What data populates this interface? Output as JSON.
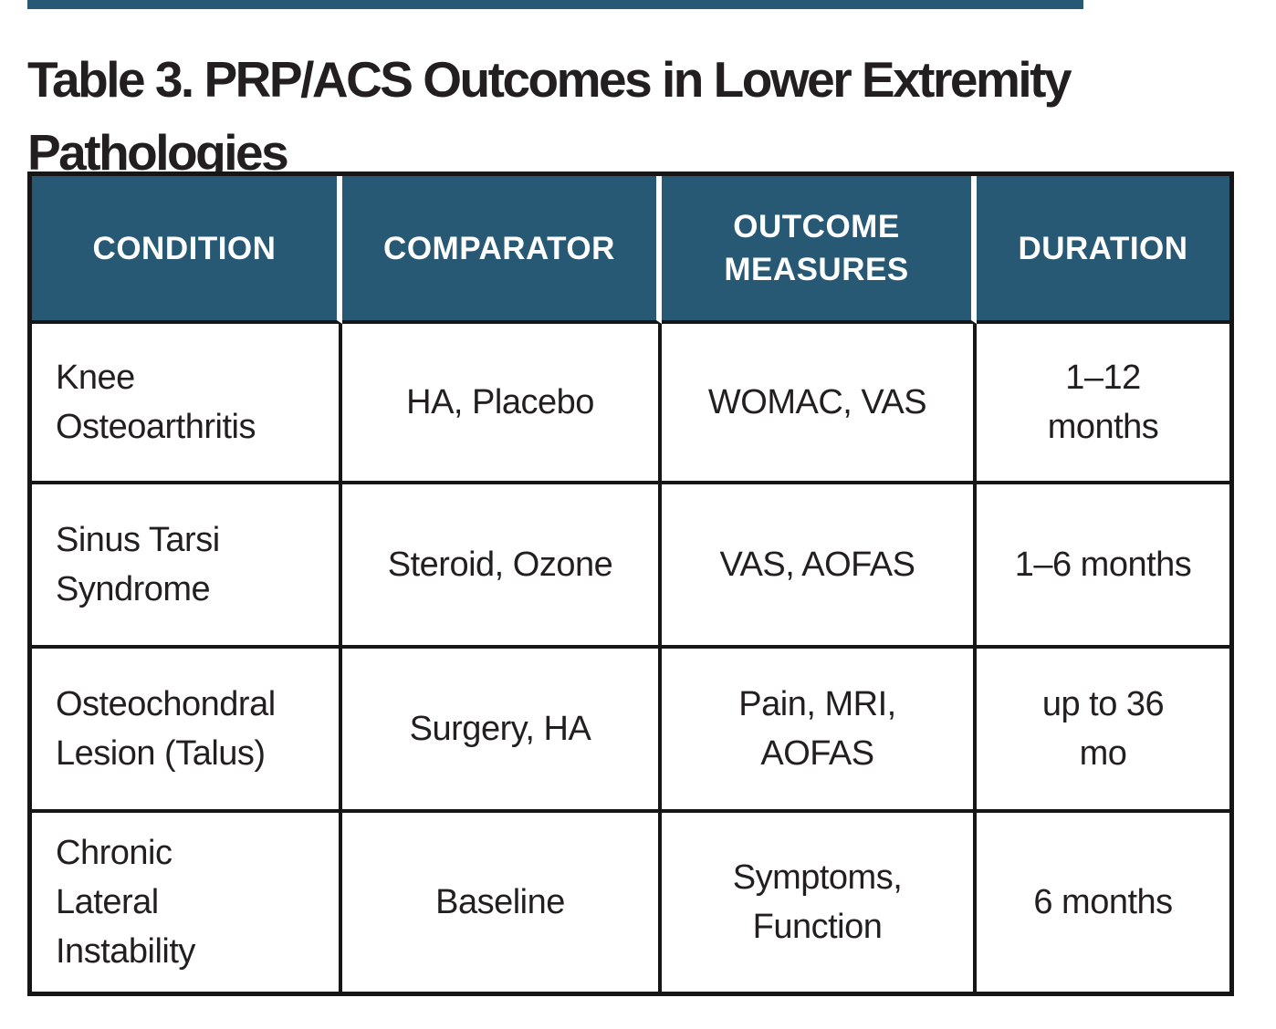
{
  "colors": {
    "header_bg": "#275974",
    "header_text": "#FFFFFF",
    "body_text": "#231F20",
    "border": "#161616",
    "accent_bar": "#275974"
  },
  "title": "Table 3. PRP/ACS Outcomes in Lower Extremity\nPathologies",
  "table": {
    "headers": [
      "CONDITION",
      "COMPARATOR",
      "OUTCOME\nMEASURES",
      "DURATION"
    ],
    "rows": [
      [
        "Knee\nOsteoarthritis",
        "HA, Placebo",
        "WOMAC, VAS",
        "1–12\nmonths"
      ],
      [
        "Sinus Tarsi\nSyndrome",
        "Steroid, Ozone",
        "VAS, AOFAS",
        "1–6 months"
      ],
      [
        "Osteochondral\nLesion (Talus)",
        "Surgery, HA",
        "Pain, MRI,\nAOFAS",
        "up to 36\nmo"
      ],
      [
        "Chronic\nLateral\nInstability",
        "Baseline",
        "Symptoms,\nFunction",
        "6 months"
      ]
    ]
  },
  "chart_data": {
    "type": "table",
    "title": "Table 3. PRP/ACS Outcomes in Lower Extremity Pathologies",
    "columns": [
      "CONDITION",
      "COMPARATOR",
      "OUTCOME MEASURES",
      "DURATION"
    ],
    "rows": [
      [
        "Knee Osteoarthritis",
        "HA, Placebo",
        "WOMAC, VAS",
        "1–12 months"
      ],
      [
        "Sinus Tarsi Syndrome",
        "Steroid, Ozone",
        "VAS, AOFAS",
        "1–6 months"
      ],
      [
        "Osteochondral Lesion (Talus)",
        "Surgery, HA",
        "Pain, MRI, AOFAS",
        "up to 36 mo"
      ],
      [
        "Chronic Lateral Instability",
        "Baseline",
        "Symptoms, Function",
        "6 months"
      ]
    ]
  }
}
